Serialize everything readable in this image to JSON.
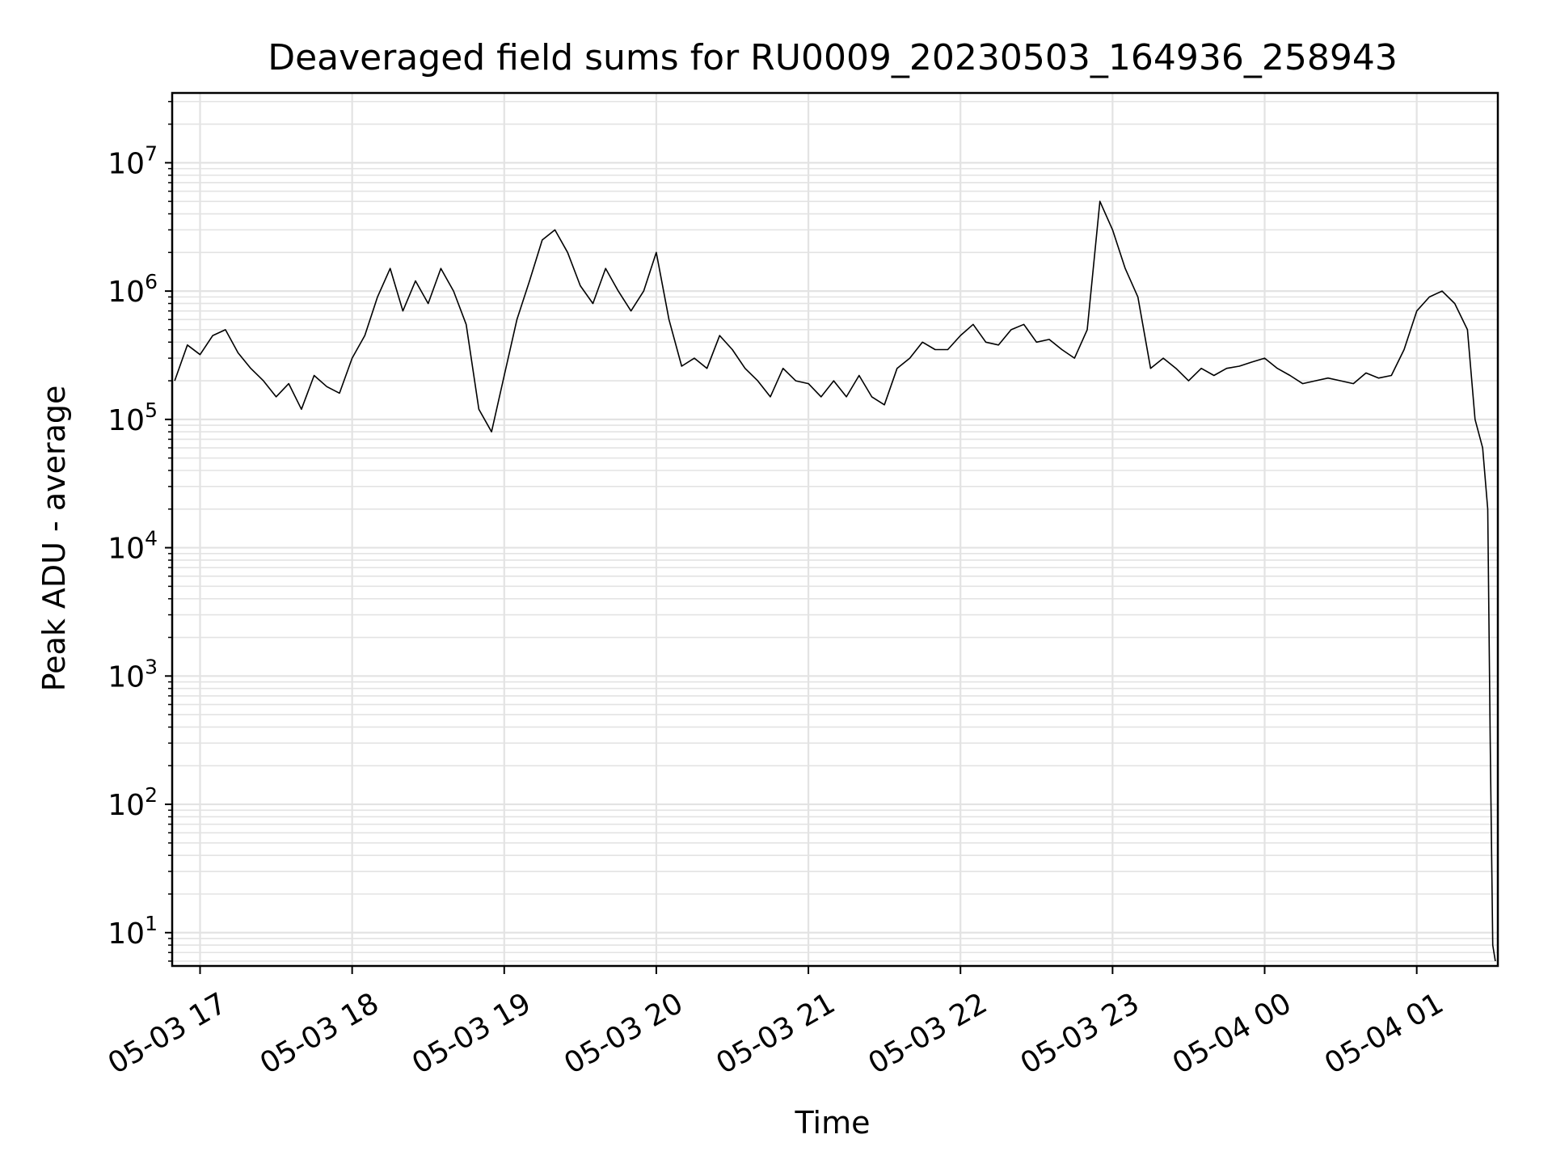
{
  "chart_data": {
    "type": "line",
    "title": "Deaveraged field sums for RU0009_20230503_164936_258943",
    "xlabel": "Time",
    "ylabel": "Peak ADU - average",
    "yscale": "log",
    "grid": true,
    "line_color": "#000000",
    "grid_color": "#e3e3e3",
    "xlim": [
      "2023-05-03 16:49",
      "2023-05-04 01:32"
    ],
    "ylim": [
      5.5,
      35000000
    ],
    "x_ticks": [
      {
        "value": "2023-05-03 17:00",
        "label": "05-03 17"
      },
      {
        "value": "2023-05-03 18:00",
        "label": "05-03 18"
      },
      {
        "value": "2023-05-03 19:00",
        "label": "05-03 19"
      },
      {
        "value": "2023-05-03 20:00",
        "label": "05-03 20"
      },
      {
        "value": "2023-05-03 21:00",
        "label": "05-03 21"
      },
      {
        "value": "2023-05-03 22:00",
        "label": "05-03 22"
      },
      {
        "value": "2023-05-03 23:00",
        "label": "05-03 23"
      },
      {
        "value": "2023-05-04 00:00",
        "label": "05-04 00"
      },
      {
        "value": "2023-05-04 01:00",
        "label": "05-04 01"
      }
    ],
    "y_ticks": [
      {
        "value": 10,
        "base": "10",
        "exp": "1"
      },
      {
        "value": 100,
        "base": "10",
        "exp": "2"
      },
      {
        "value": 1000,
        "base": "10",
        "exp": "3"
      },
      {
        "value": 10000,
        "base": "10",
        "exp": "4"
      },
      {
        "value": 100000,
        "base": "10",
        "exp": "5"
      },
      {
        "value": 1000000,
        "base": "10",
        "exp": "6"
      },
      {
        "value": 10000000,
        "base": "10",
        "exp": "7"
      }
    ],
    "series": [
      {
        "x": [
          "2023-05-03 16:50",
          "2023-05-03 16:55",
          "2023-05-03 17:00",
          "2023-05-03 17:05",
          "2023-05-03 17:10",
          "2023-05-03 17:15",
          "2023-05-03 17:20",
          "2023-05-03 17:25",
          "2023-05-03 17:30",
          "2023-05-03 17:35",
          "2023-05-03 17:40",
          "2023-05-03 17:45",
          "2023-05-03 17:50",
          "2023-05-03 17:55",
          "2023-05-03 18:00",
          "2023-05-03 18:05",
          "2023-05-03 18:10",
          "2023-05-03 18:15",
          "2023-05-03 18:20",
          "2023-05-03 18:25",
          "2023-05-03 18:30",
          "2023-05-03 18:35",
          "2023-05-03 18:40",
          "2023-05-03 18:45",
          "2023-05-03 18:50",
          "2023-05-03 18:55",
          "2023-05-03 19:00",
          "2023-05-03 19:05",
          "2023-05-03 19:10",
          "2023-05-03 19:15",
          "2023-05-03 19:20",
          "2023-05-03 19:25",
          "2023-05-03 19:30",
          "2023-05-03 19:35",
          "2023-05-03 19:40",
          "2023-05-03 19:45",
          "2023-05-03 19:50",
          "2023-05-03 19:55",
          "2023-05-03 20:00",
          "2023-05-03 20:05",
          "2023-05-03 20:10",
          "2023-05-03 20:15",
          "2023-05-03 20:20",
          "2023-05-03 20:25",
          "2023-05-03 20:30",
          "2023-05-03 20:35",
          "2023-05-03 20:40",
          "2023-05-03 20:45",
          "2023-05-03 20:50",
          "2023-05-03 20:55",
          "2023-05-03 21:00",
          "2023-05-03 21:05",
          "2023-05-03 21:10",
          "2023-05-03 21:15",
          "2023-05-03 21:20",
          "2023-05-03 21:25",
          "2023-05-03 21:30",
          "2023-05-03 21:35",
          "2023-05-03 21:40",
          "2023-05-03 21:45",
          "2023-05-03 21:50",
          "2023-05-03 21:55",
          "2023-05-03 22:00",
          "2023-05-03 22:05",
          "2023-05-03 22:10",
          "2023-05-03 22:15",
          "2023-05-03 22:20",
          "2023-05-03 22:25",
          "2023-05-03 22:30",
          "2023-05-03 22:35",
          "2023-05-03 22:40",
          "2023-05-03 22:45",
          "2023-05-03 22:50",
          "2023-05-03 22:55",
          "2023-05-03 23:00",
          "2023-05-03 23:05",
          "2023-05-03 23:10",
          "2023-05-03 23:15",
          "2023-05-03 23:20",
          "2023-05-03 23:25",
          "2023-05-03 23:30",
          "2023-05-03 23:35",
          "2023-05-03 23:40",
          "2023-05-03 23:45",
          "2023-05-03 23:50",
          "2023-05-03 23:55",
          "2023-05-04 00:00",
          "2023-05-04 00:05",
          "2023-05-04 00:10",
          "2023-05-04 00:15",
          "2023-05-04 00:20",
          "2023-05-04 00:25",
          "2023-05-04 00:30",
          "2023-05-04 00:35",
          "2023-05-04 00:40",
          "2023-05-04 00:45",
          "2023-05-04 00:50",
          "2023-05-04 00:55",
          "2023-05-04 01:00",
          "2023-05-04 01:05",
          "2023-05-04 01:10",
          "2023-05-04 01:15",
          "2023-05-04 01:20",
          "2023-05-04 01:23",
          "2023-05-04 01:26",
          "2023-05-04 01:28",
          "2023-05-04 01:29",
          "2023-05-04 01:30",
          "2023-05-04 01:31"
        ],
        "y": [
          200000,
          380000,
          320000,
          450000,
          500000,
          330000,
          250000,
          200000,
          150000,
          190000,
          120000,
          220000,
          180000,
          160000,
          300000,
          450000,
          900000,
          1500000,
          700000,
          1200000,
          800000,
          1500000,
          1000000,
          550000,
          120000,
          80000,
          220000,
          600000,
          1200000,
          2500000,
          3000000,
          2000000,
          1100000,
          800000,
          1500000,
          1000000,
          700000,
          1000000,
          2000000,
          600000,
          260000,
          300000,
          250000,
          450000,
          350000,
          250000,
          200000,
          150000,
          250000,
          200000,
          190000,
          150000,
          200000,
          150000,
          220000,
          150000,
          130000,
          250000,
          300000,
          400000,
          350000,
          350000,
          450000,
          550000,
          400000,
          380000,
          500000,
          550000,
          400000,
          420000,
          350000,
          300000,
          500000,
          5000000,
          3000000,
          1500000,
          900000,
          250000,
          300000,
          250000,
          200000,
          250000,
          220000,
          250000,
          260000,
          280000,
          300000,
          250000,
          220000,
          190000,
          200000,
          210000,
          200000,
          190000,
          230000,
          210000,
          220000,
          350000,
          700000,
          900000,
          1000000,
          800000,
          500000,
          100000,
          60000,
          20000,
          300,
          8,
          6
        ]
      }
    ]
  }
}
